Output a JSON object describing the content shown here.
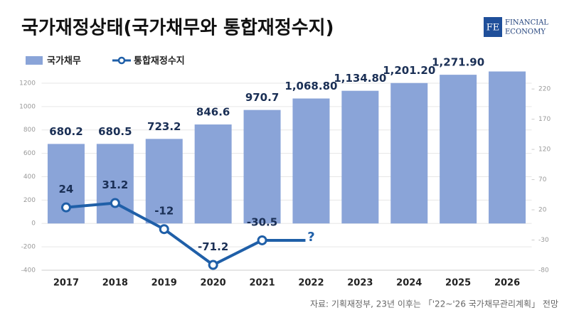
{
  "chart_data": {
    "type": "bar_line",
    "title": "국가재정상태(국가채무와 통합재정수지)",
    "source": "자료: 기획재정부, 23년 이후는 「'22~'26 국가채무관리계획」 전망",
    "logo": {
      "mark": "FE",
      "line1": "FINANCIAL",
      "line2": "ECONOMY"
    },
    "categories": [
      "2017",
      "2018",
      "2019",
      "2020",
      "2021",
      "2022",
      "2023",
      "2024",
      "2025",
      "2026"
    ],
    "series": [
      {
        "name": "국가채무",
        "type": "bar",
        "color": "#8aa4d8",
        "values": [
          680.2,
          680.5,
          723.2,
          846.6,
          970.7,
          1068.8,
          1134.8,
          1201.2,
          1271.9,
          1300
        ],
        "value_labels": [
          "680.2",
          "680.5",
          "723.2",
          "846.6",
          "970.7",
          "1,068.80",
          "1,134.80",
          "1,201.20",
          "1,271.90",
          null
        ]
      },
      {
        "name": "통합재정수지",
        "type": "line",
        "axis": "y2",
        "color": "#1f5fa8",
        "values": [
          24,
          31.2,
          -12,
          -71.2,
          -30.5,
          null,
          null,
          null,
          null,
          null
        ]
      }
    ],
    "annotations": [
      {
        "text": "?",
        "category": "2022"
      }
    ],
    "ylim": [
      -400,
      1300
    ],
    "yticks": [
      -400,
      -200,
      0,
      200,
      400,
      600,
      800,
      1000,
      1200
    ],
    "y2lim": [
      -80,
      249
    ],
    "y2ticks": [
      -80,
      -30,
      20,
      70,
      120,
      170,
      220
    ],
    "grid": true,
    "legend": "top-left"
  }
}
